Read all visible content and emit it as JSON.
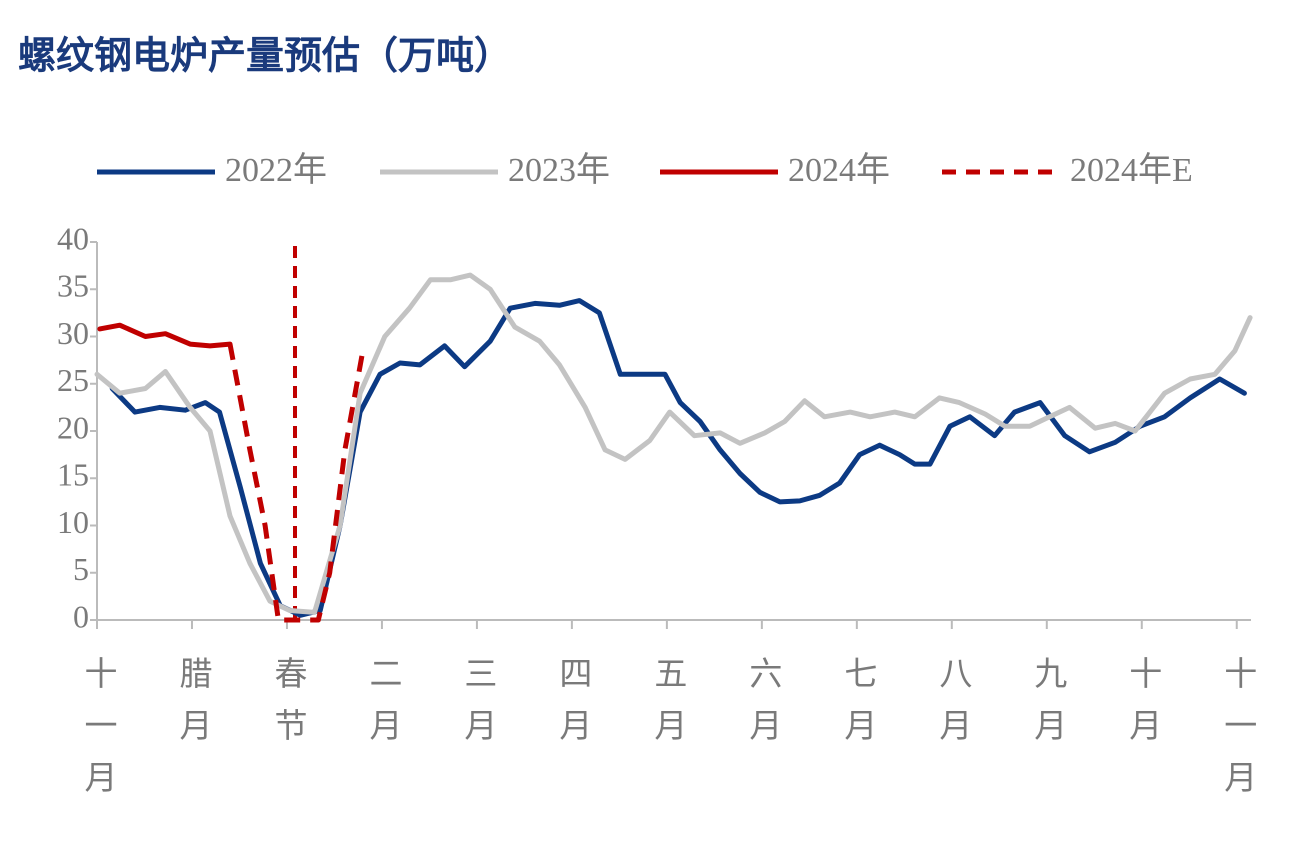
{
  "chart_data": {
    "type": "line",
    "title": "螺纹钢电炉产量预估（万吨）",
    "xlim": [
      0,
      12.15
    ],
    "xticks": [
      {
        "value": 0,
        "label": "十一月"
      },
      {
        "value": 1,
        "label": "腊月"
      },
      {
        "value": 2,
        "label": "春节"
      },
      {
        "value": 3,
        "label": "二月"
      },
      {
        "value": 4,
        "label": "三月"
      },
      {
        "value": 5,
        "label": "四月"
      },
      {
        "value": 6,
        "label": "五月"
      },
      {
        "value": 7,
        "label": "六月"
      },
      {
        "value": 8,
        "label": "七月"
      },
      {
        "value": 9,
        "label": "八月"
      },
      {
        "value": 10,
        "label": "九月"
      },
      {
        "value": 11,
        "label": "十月"
      },
      {
        "value": 12,
        "label": "十一月"
      }
    ],
    "ylim": [
      0,
      40
    ],
    "yticks": [
      0,
      5,
      10,
      15,
      20,
      25,
      30,
      35,
      40
    ],
    "legend": "top",
    "series": [
      {
        "name": "2022年",
        "color": "#0c3a84",
        "dashed": false,
        "x": [
          0.16,
          0.4,
          0.66,
          0.93,
          1.14,
          1.29,
          1.51,
          1.72,
          1.93,
          2.14,
          2.35,
          2.56,
          2.77,
          2.98,
          3.19,
          3.4,
          3.66,
          3.87,
          4.14,
          4.35,
          4.61,
          4.87,
          5.08,
          5.29,
          5.51,
          5.77,
          5.98,
          6.14,
          6.35,
          6.56,
          6.77,
          6.98,
          7.19,
          7.4,
          7.61,
          7.82,
          8.03,
          8.24,
          8.45,
          8.61,
          8.77,
          8.98,
          9.19,
          9.45,
          9.66,
          9.93,
          10.19,
          10.45,
          10.72,
          10.98,
          11.24,
          11.51,
          11.82,
          12.08
        ],
        "values": [
          24.5,
          22,
          22.5,
          22.2,
          23,
          22,
          14,
          6,
          1.5,
          0.5,
          1,
          10,
          22,
          26,
          27.2,
          27,
          29,
          26.8,
          29.5,
          33,
          33.5,
          33.3,
          33.8,
          32.5,
          26,
          26,
          26,
          23,
          21,
          18,
          15.5,
          13.5,
          12.5,
          12.6,
          13.2,
          14.5,
          17.5,
          18.5,
          17.5,
          16.5,
          16.5,
          20.5,
          21.5,
          19.5,
          22,
          23,
          19.5,
          17.8,
          18.8,
          20.5,
          21.5,
          23.5,
          25.5,
          24
        ]
      },
      {
        "name": "2023年",
        "color": "#c3c3c3",
        "dashed": false,
        "x": [
          0,
          0.24,
          0.51,
          0.72,
          0.98,
          1.19,
          1.4,
          1.61,
          1.82,
          2.03,
          2.29,
          2.56,
          2.77,
          3.03,
          3.29,
          3.51,
          3.72,
          3.93,
          4.14,
          4.4,
          4.66,
          4.87,
          5.14,
          5.35,
          5.56,
          5.82,
          6.03,
          6.29,
          6.56,
          6.77,
          7.03,
          7.24,
          7.45,
          7.66,
          7.93,
          8.14,
          8.4,
          8.61,
          8.87,
          9.08,
          9.35,
          9.56,
          9.82,
          10.03,
          10.24,
          10.51,
          10.72,
          10.93,
          11.24,
          11.51,
          11.77,
          11.98,
          12.14
        ],
        "values": [
          26,
          24,
          24.5,
          26.3,
          22.5,
          20,
          11,
          6,
          2,
          1,
          0.8,
          10,
          24,
          30,
          33,
          36,
          36,
          36.5,
          35,
          31,
          29.5,
          27,
          22.5,
          18,
          17,
          19,
          22,
          19.5,
          19.8,
          18.7,
          19.8,
          21,
          23.2,
          21.5,
          22,
          21.5,
          22,
          21.5,
          23.5,
          23,
          21.8,
          20.5,
          20.5,
          21.5,
          22.5,
          20.3,
          20.8,
          20,
          24,
          25.5,
          26,
          28.5,
          32
        ]
      },
      {
        "name": "2024年",
        "color": "#c00000",
        "dashed": false,
        "x": [
          0.03,
          0.24,
          0.51,
          0.72,
          0.98,
          1.19,
          1.4
        ],
        "values": [
          30.8,
          31.2,
          30,
          30.3,
          29.2,
          29,
          29.2
        ]
      },
      {
        "name": "2024年E",
        "color": "#c00000",
        "dashed": true,
        "x": [
          1.4,
          1.61,
          1.77,
          1.91,
          2.08,
          2.33,
          2.45,
          2.61,
          2.79
        ],
        "values": [
          29.2,
          18,
          10,
          0,
          0,
          0,
          5,
          18,
          28
        ]
      }
    ]
  }
}
